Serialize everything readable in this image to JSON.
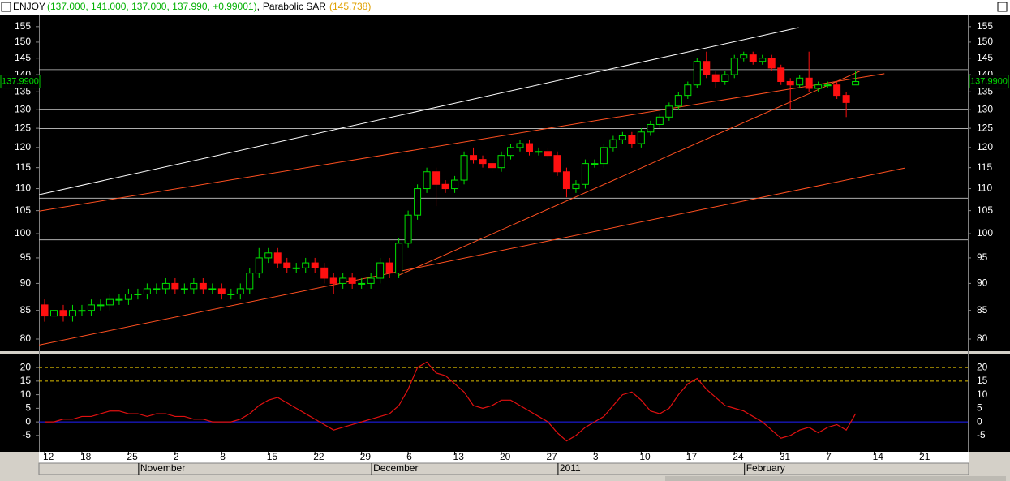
{
  "header": {
    "symbol": "ENJOY",
    "ohlc": "(137.000, 141.000, 137.000, 137.990, +0.99001)",
    "indicator": "Parabolic SAR",
    "indicator_value": "(145.738)"
  },
  "chart_data": [
    {
      "type": "candlestick",
      "log": true,
      "ylim": [
        78.1,
        159
      ],
      "yticks": [
        80,
        85,
        90,
        95,
        100,
        105,
        110,
        115,
        120,
        125,
        130,
        135,
        140,
        145,
        150,
        155
      ],
      "up_color": "#00e000",
      "down_color": "#ff1010",
      "price_label": {
        "value": 137.99,
        "label": "137.9900"
      },
      "open": [
        86,
        84,
        85,
        84,
        85,
        85,
        86,
        86,
        87,
        87,
        88,
        88,
        89,
        89,
        90,
        89,
        89,
        90,
        89,
        89,
        88,
        88,
        89,
        92,
        95,
        96,
        94,
        93,
        93,
        94,
        93,
        91,
        90,
        91,
        90,
        90,
        91,
        94,
        92,
        98,
        104,
        110,
        114,
        111,
        110,
        112,
        118,
        117,
        116,
        115,
        118,
        120,
        121,
        119,
        119,
        118,
        114,
        110,
        111,
        116,
        116,
        120,
        122,
        123,
        121,
        124,
        126,
        128,
        131,
        134,
        137,
        144,
        140,
        138,
        140,
        145,
        146,
        144,
        145,
        142,
        138,
        137,
        139,
        136,
        137,
        137,
        134,
        137
      ],
      "high": [
        87,
        86,
        86,
        86,
        86,
        87,
        87,
        88,
        88,
        89,
        89,
        90,
        90,
        91,
        91,
        90,
        91,
        91,
        90,
        90,
        89,
        90,
        93,
        97,
        97,
        97,
        95,
        94,
        95,
        95,
        94,
        92,
        92,
        92,
        91,
        92,
        95,
        95,
        99,
        105,
        111,
        115,
        115,
        112,
        113,
        119,
        120,
        118,
        117,
        119,
        121,
        122,
        122,
        120,
        120,
        119,
        115,
        112,
        117,
        117,
        121,
        123,
        124,
        124,
        125,
        127,
        129,
        132,
        135,
        138,
        145,
        147,
        141,
        141,
        146,
        147,
        147,
        146,
        146,
        143,
        139,
        140,
        147,
        138,
        138,
        138,
        135,
        141
      ],
      "low": [
        83,
        83,
        83,
        83,
        84,
        84,
        85,
        85,
        86,
        86,
        87,
        87,
        88,
        88,
        88,
        88,
        88,
        88,
        88,
        87,
        87,
        87,
        88,
        91,
        94,
        93,
        92,
        92,
        92,
        92,
        90,
        88,
        89,
        89,
        89,
        89,
        90,
        91,
        91,
        97,
        103,
        109,
        106,
        109,
        109,
        111,
        116,
        115,
        114,
        114,
        117,
        119,
        118,
        118,
        117,
        113,
        108,
        109,
        110,
        115,
        115,
        119,
        121,
        120,
        120,
        123,
        125,
        127,
        130,
        133,
        136,
        139,
        136,
        137,
        139,
        144,
        143,
        143,
        141,
        137,
        130,
        136,
        135,
        135,
        136,
        133,
        128,
        137
      ],
      "close": [
        84,
        85,
        84,
        85,
        85,
        86,
        86,
        87,
        87,
        88,
        88,
        89,
        89,
        90,
        89,
        89,
        90,
        89,
        89,
        88,
        88,
        89,
        92,
        95,
        96,
        94,
        93,
        93,
        94,
        93,
        91,
        90,
        91,
        90,
        90,
        91,
        94,
        92,
        98,
        104,
        110,
        114,
        111,
        110,
        112,
        118,
        117,
        116,
        115,
        118,
        120,
        121,
        119,
        119,
        118,
        114,
        110,
        111,
        116,
        116,
        120,
        122,
        123,
        121,
        124,
        126,
        128,
        131,
        134,
        137,
        144,
        140,
        138,
        140,
        145,
        146,
        144,
        145,
        142,
        138,
        137,
        139,
        136,
        137,
        137,
        134,
        132,
        137.99
      ],
      "levels": [
        141.5,
        130.2,
        124.9,
        107.8,
        98.7
      ],
      "level_color": "#c8c8c8",
      "trendlines": [
        {
          "from": [
            -0.6,
            108.6
          ],
          "to": [
            80.9,
            154.7
          ],
          "color": "#ffffff"
        },
        {
          "from": [
            -0.6,
            104.9
          ],
          "to": [
            90.1,
            140.3
          ],
          "color": "#ff5020"
        },
        {
          "from": [
            -0.6,
            79
          ],
          "to": [
            92.3,
            114.9
          ],
          "color": "#ff5020"
        },
        {
          "from": [
            37.9,
            91.5
          ],
          "to": [
            87.5,
            141.1
          ],
          "color": "#ff5020"
        }
      ]
    },
    {
      "type": "line",
      "color": "#e01010",
      "ylim": [
        -11,
        24.8
      ],
      "yticks": [
        -5,
        0,
        5,
        10,
        15,
        20
      ],
      "values": [
        0,
        0,
        1,
        1,
        2,
        2,
        3,
        4,
        4,
        3,
        3,
        2,
        3,
        3,
        2,
        2,
        1,
        1,
        0,
        0,
        0,
        1,
        3,
        6,
        8,
        9,
        7,
        5,
        3,
        1,
        -1,
        -3,
        -2,
        -1,
        0,
        1,
        2,
        3,
        6,
        12,
        20,
        22,
        18,
        17,
        14,
        11,
        6,
        5,
        6,
        8,
        8,
        6,
        4,
        2,
        0,
        -4,
        -7,
        -5,
        -2,
        0,
        2,
        6,
        10,
        11,
        8,
        4,
        3,
        5,
        10,
        14,
        16,
        12,
        9,
        6,
        5,
        4,
        2,
        0,
        -3,
        -6,
        -5,
        -3,
        -2,
        -4,
        -2,
        -1,
        -3,
        3
      ],
      "levels": [
        {
          "value": 20,
          "color": "#e0c000"
        },
        {
          "value": 15,
          "color": "#e0c000"
        },
        {
          "value": 0,
          "color": "#2020ff"
        }
      ],
      "xticks": [
        {
          "value": 0,
          "label": "12"
        },
        {
          "value": 4,
          "label": "18"
        },
        {
          "value": 9,
          "label": "25"
        },
        {
          "value": 14,
          "label": "2"
        },
        {
          "value": 19,
          "label": "8"
        },
        {
          "value": 24,
          "label": "15"
        },
        {
          "value": 29,
          "label": "22"
        },
        {
          "value": 34,
          "label": "29"
        },
        {
          "value": 39,
          "label": "6"
        },
        {
          "value": 44,
          "label": "13"
        },
        {
          "value": 49,
          "label": "20"
        },
        {
          "value": 54,
          "label": "27"
        },
        {
          "value": 59,
          "label": "3"
        },
        {
          "value": 64,
          "label": "10"
        },
        {
          "value": 69,
          "label": "17"
        },
        {
          "value": 74,
          "label": "24"
        },
        {
          "value": 79,
          "label": "31"
        },
        {
          "value": 84,
          "label": "7"
        },
        {
          "value": 89,
          "label": "14"
        },
        {
          "value": 94,
          "label": "21"
        }
      ],
      "months": [
        {
          "value": 14,
          "label": "November"
        },
        {
          "value": 39,
          "label": "December"
        },
        {
          "value": 59,
          "label": "2011"
        },
        {
          "value": 79,
          "label": "February"
        }
      ]
    }
  ]
}
